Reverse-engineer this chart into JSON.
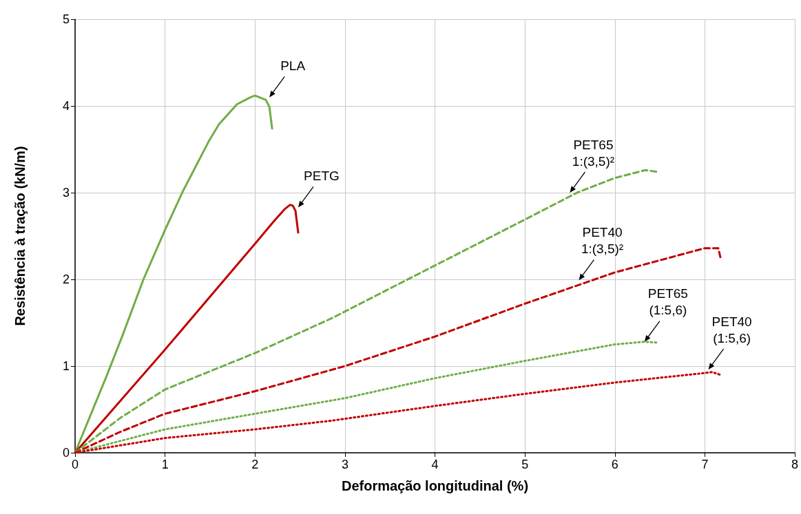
{
  "chart_data": {
    "type": "line",
    "xlabel": "Deformação longitudinal (%)",
    "ylabel": "Resistência à tração (kN/m)",
    "xlim": [
      0,
      8
    ],
    "xticks": [
      0,
      1,
      2,
      3,
      4,
      5,
      6,
      7,
      8
    ],
    "ylim": [
      0,
      5
    ],
    "yticks": [
      0,
      1,
      2,
      3,
      4,
      5
    ],
    "grid": true,
    "marker": "none",
    "series": [
      {
        "color": "#70ad47",
        "line_style": "solid",
        "x": [
          0,
          0.36,
          0.53,
          0.76,
          1.0,
          1.2,
          1.49,
          1.6,
          1.8,
          1.95,
          2.0,
          2.12,
          2.16,
          2.19
        ],
        "values": [
          0,
          0.91,
          1.36,
          2.0,
          2.57,
          3.02,
          3.6,
          3.79,
          4.02,
          4.1,
          4.12,
          4.07,
          3.99,
          3.74
        ]
      },
      {
        "color": "#c00000",
        "line_style": "solid",
        "x": [
          0,
          1.0,
          2.0,
          2.21,
          2.33,
          2.39,
          2.42,
          2.45,
          2.48
        ],
        "values": [
          0,
          1.19,
          2.41,
          2.67,
          2.81,
          2.86,
          2.85,
          2.79,
          2.54
        ]
      },
      {
        "color": "#70ad47",
        "line_style": "dashed",
        "x": [
          0,
          0.25,
          0.5,
          1.0,
          2.0,
          2.85,
          4.0,
          5.0,
          5.58,
          6.0,
          6.34,
          6.47
        ],
        "values": [
          0,
          0.2,
          0.4,
          0.73,
          1.15,
          1.55,
          2.16,
          2.69,
          3.0,
          3.17,
          3.26,
          3.24
        ]
      },
      {
        "color": "#c00000",
        "line_style": "dashed",
        "x": [
          0,
          0.5,
          1.0,
          2.0,
          3.0,
          4.0,
          5.0,
          6.0,
          7.0,
          7.15,
          7.18
        ],
        "values": [
          0,
          0.24,
          0.45,
          0.71,
          1.0,
          1.34,
          1.72,
          2.08,
          2.36,
          2.36,
          2.22
        ]
      },
      {
        "color": "#70ad47",
        "line_style": "dotted",
        "x": [
          0,
          1.0,
          2.0,
          3.0,
          4.0,
          5.0,
          6.0,
          6.33,
          6.48
        ],
        "values": [
          0,
          0.27,
          0.45,
          0.63,
          0.86,
          1.06,
          1.25,
          1.28,
          1.27
        ]
      },
      {
        "color": "#c00000",
        "line_style": "dotted",
        "x": [
          0,
          1.0,
          2.0,
          2.85,
          4.0,
          5.0,
          6.0,
          7.0,
          7.08,
          7.17
        ],
        "values": [
          0,
          0.17,
          0.27,
          0.37,
          0.54,
          0.68,
          0.81,
          0.92,
          0.93,
          0.9
        ]
      }
    ],
    "annotations": [
      {
        "text": "PLA",
        "x": 2.16,
        "y": 4.1
      },
      {
        "text": "PETG",
        "x": 2.48,
        "y": 2.83
      },
      {
        "text": "PET65\n1:(3,5)²",
        "x": 5.5,
        "y": 3.0
      },
      {
        "text": "PET40\n1:(3,5)²",
        "x": 5.6,
        "y": 1.99
      },
      {
        "text": "PET65\n(1:5,6)",
        "x": 6.33,
        "y": 1.28
      },
      {
        "text": "PET40\n(1:5,6)",
        "x": 7.04,
        "y": 0.96
      }
    ]
  }
}
